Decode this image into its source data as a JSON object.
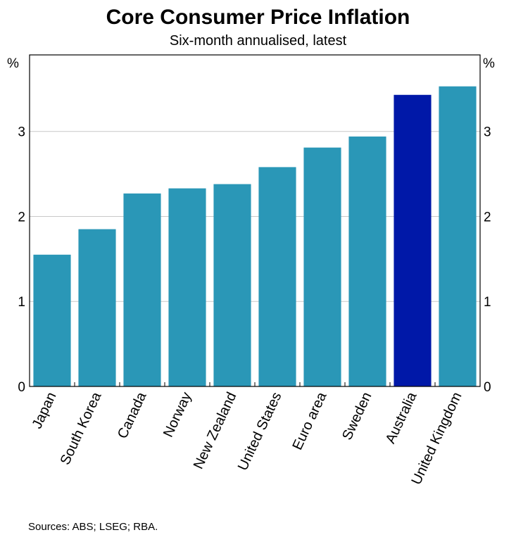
{
  "title": "Core Consumer Price Inflation",
  "subtitle": "Six-month annualised, latest",
  "source": "Sources: ABS; LSEG; RBA.",
  "colors": {
    "bar": "#2A97B7",
    "highlight": "#0018A8",
    "grid": "#c8c8c8",
    "axis": "#000000"
  },
  "chart_data": {
    "type": "bar",
    "title": "Core Consumer Price Inflation",
    "subtitle": "Six-month annualised, latest",
    "ylabel_left": "%",
    "ylabel_right": "%",
    "ylim": [
      0,
      3.9
    ],
    "yticks": [
      0,
      1,
      2,
      3
    ],
    "grid": true,
    "highlight_category": "Australia",
    "categories": [
      "Japan",
      "South Korea",
      "Canada",
      "Norway",
      "New Zealand",
      "United States",
      "Euro area",
      "Sweden",
      "Australia",
      "United Kingdom"
    ],
    "values": [
      1.55,
      1.85,
      2.27,
      2.33,
      2.38,
      2.58,
      2.81,
      2.94,
      3.43,
      3.53
    ]
  }
}
